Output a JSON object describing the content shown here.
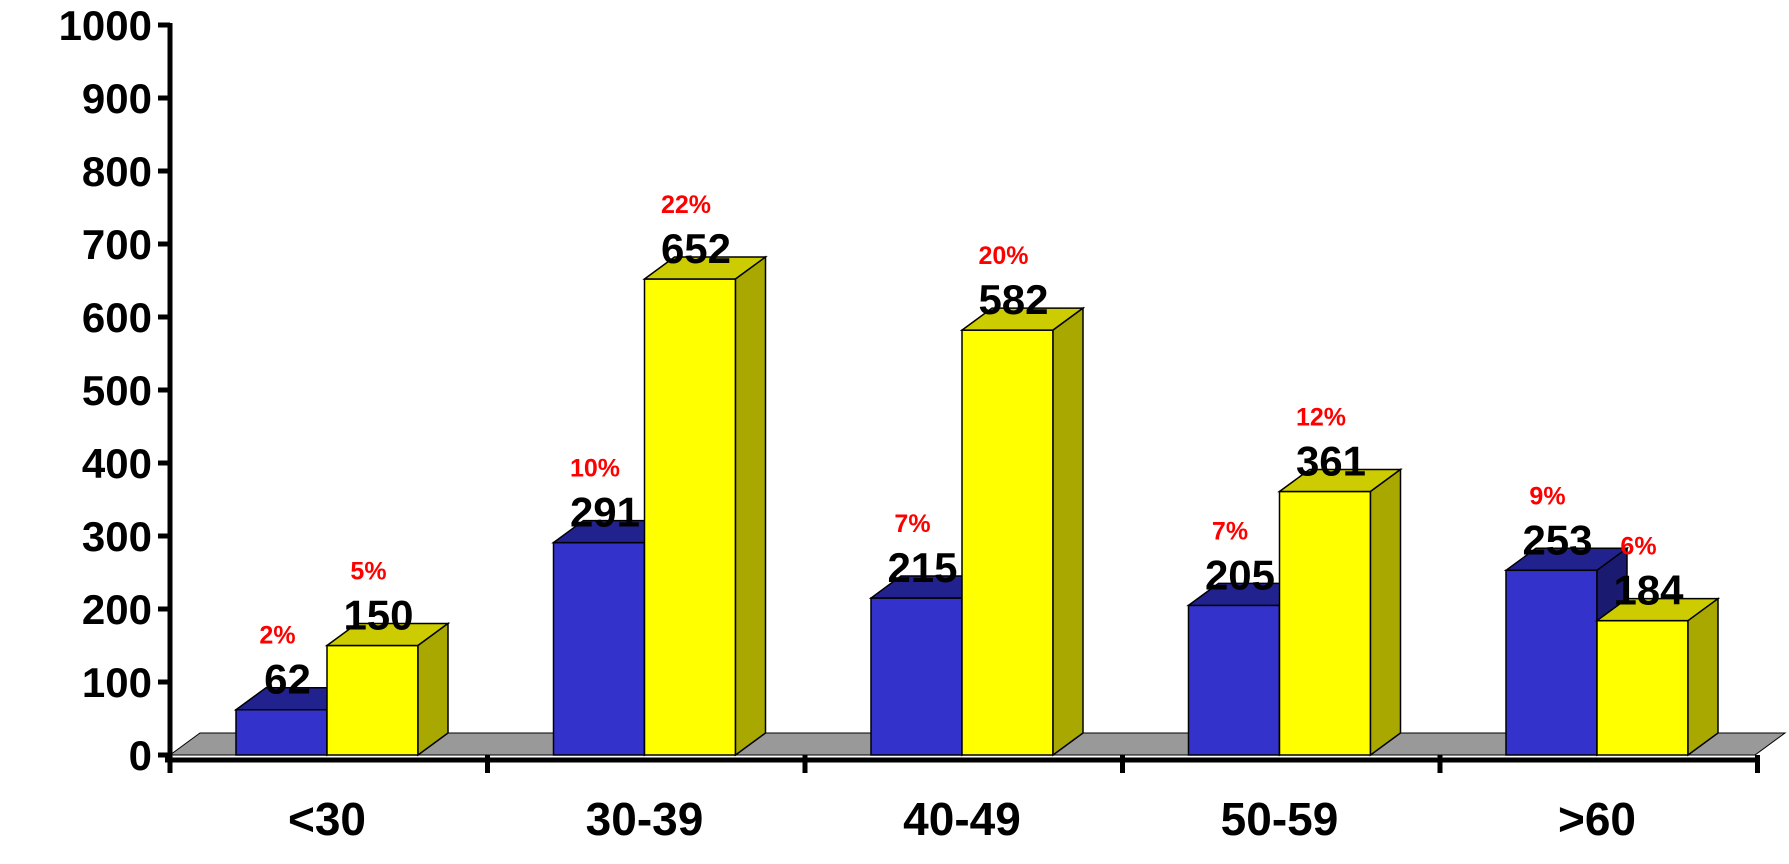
{
  "chart_data": {
    "type": "bar",
    "categories": [
      "<30",
      "30-39",
      "40-49",
      "50-59",
      ">60"
    ],
    "series": [
      {
        "values": [
          62,
          291,
          215,
          205,
          253
        ],
        "percent_labels": [
          "2%",
          "10%",
          "7%",
          "7%",
          "9%"
        ]
      },
      {
        "values": [
          150,
          652,
          582,
          361,
          184
        ],
        "percent_labels": [
          "5%",
          "22%",
          "20%",
          "12%",
          "6%"
        ]
      }
    ],
    "ylim": [
      0,
      1000
    ],
    "yticks": [
      0,
      100,
      200,
      300,
      400,
      500,
      600,
      700,
      800,
      900,
      1000
    ],
    "grid": false,
    "legend": "none",
    "style": "3d-bar",
    "colors": {
      "series_0": {
        "front": "#3333cc",
        "top": "#22228f",
        "side": "#1a1a70"
      },
      "series_1": {
        "front": "#ffff00",
        "top": "#cccc00",
        "side": "#a8a800"
      },
      "floor": "#999999",
      "axis": "#000000",
      "value_label": "#000000",
      "percent_label": "#ff0000"
    }
  }
}
